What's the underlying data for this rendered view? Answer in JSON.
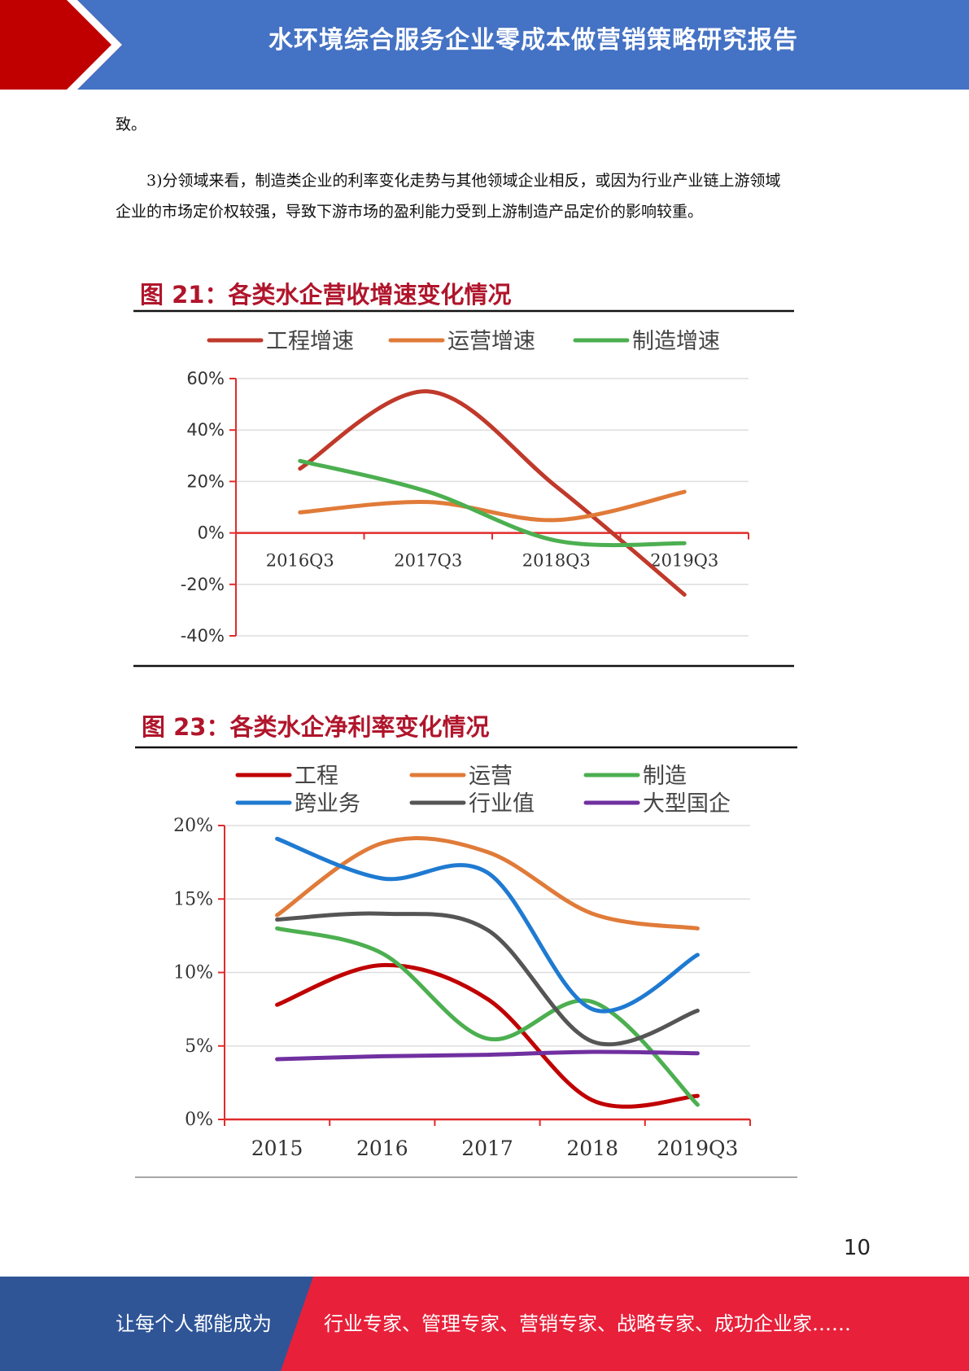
{
  "header": {
    "title": "水环境综合服务企业零成本做营销策略研究报告",
    "colors": {
      "bar": "#4472c4",
      "accent": "#c00000"
    }
  },
  "body": {
    "paragraph_1": "致。",
    "paragraph_2_line_1": "3)分领域来看，制造类企业的利率变化走势与其他领域企业相反，或因为行业产业链上游领域",
    "paragraph_2_line_2": "企业的市场定价权较强，导致下游市场的盈利能力受到上游制造产品定价的影响较重。"
  },
  "chart_data": [
    {
      "type": "line",
      "title": "图 21：各类水企营收增速变化情况",
      "categories": [
        "2016Q3",
        "2017Q3",
        "2018Q3",
        "2019Q3"
      ],
      "y_ticks": [
        "60%",
        "40%",
        "20%",
        "0%",
        "-20%",
        "-40%"
      ],
      "ylim": [
        -40,
        60
      ],
      "unit": "%",
      "legend_position": "top",
      "series": [
        {
          "name": "工程增速",
          "color": "#c0392b",
          "values": [
            25,
            55,
            18,
            -24
          ]
        },
        {
          "name": "运营增速",
          "color": "#e07b39",
          "values": [
            8,
            12,
            5,
            16
          ]
        },
        {
          "name": "制造增速",
          "color": "#4caf50",
          "values": [
            28,
            16,
            -3,
            -4
          ]
        }
      ]
    },
    {
      "type": "line",
      "title": "图 23：各类水企净利率变化情况",
      "categories": [
        "2015",
        "2016",
        "2017",
        "2018",
        "2019Q3"
      ],
      "y_ticks": [
        "20%",
        "15%",
        "10%",
        "5%",
        "0%"
      ],
      "ylim": [
        0,
        20
      ],
      "unit": "%",
      "legend_position": "top",
      "series": [
        {
          "name": "工程",
          "color": "#c00000",
          "values": [
            7.8,
            10.5,
            8.2,
            1.3,
            1.6
          ]
        },
        {
          "name": "运营",
          "color": "#e07b39",
          "values": [
            13.9,
            18.8,
            18.2,
            14.0,
            13.0
          ]
        },
        {
          "name": "制造",
          "color": "#4caf50",
          "values": [
            13.0,
            11.3,
            5.5,
            8.0,
            1.0
          ]
        },
        {
          "name": "跨业务",
          "color": "#1f7ad1",
          "values": [
            19.1,
            16.4,
            16.8,
            7.5,
            11.2
          ]
        },
        {
          "name": "行业值",
          "color": "#555555",
          "values": [
            13.6,
            14.0,
            12.9,
            5.3,
            7.4
          ]
        },
        {
          "name": "大型国企",
          "color": "#7030a0",
          "values": [
            4.1,
            4.3,
            4.4,
            4.6,
            4.5
          ]
        }
      ]
    }
  ],
  "page_number": "10",
  "footer": {
    "left_text": "让每个人都能成为",
    "right_text": "行业专家、管理专家、营销专家、战略专家、成功企业家……",
    "colors": {
      "left": "#2f5597",
      "right": "#e8203a"
    }
  }
}
